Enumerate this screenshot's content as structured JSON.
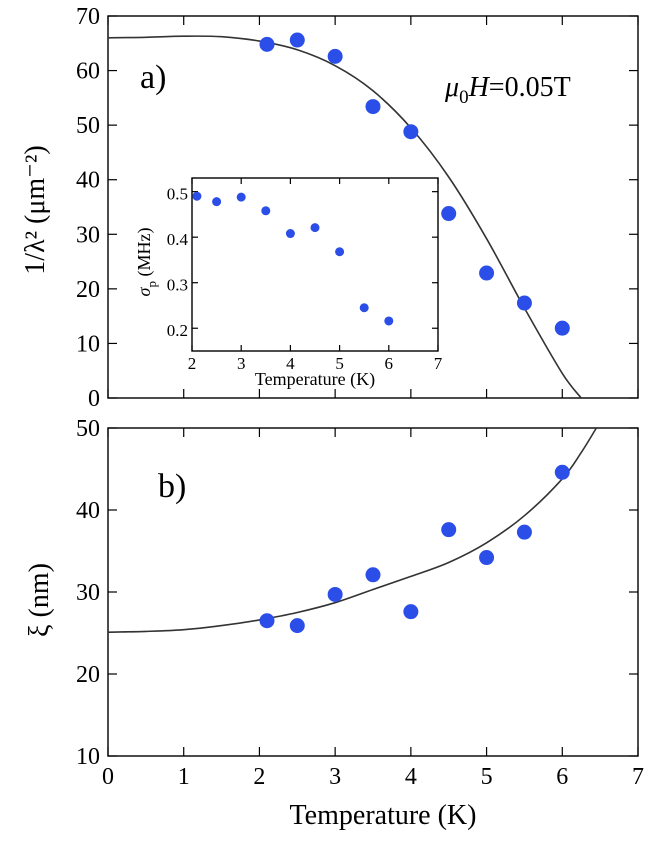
{
  "chart_data": [
    {
      "id": "panel-a",
      "type": "scatter",
      "panel_label": "a)",
      "annotation": {
        "mu": "μ",
        "sub": "0",
        "H": "H",
        "value": "=0.05T"
      },
      "ylabel": "1/λ² (μm⁻²)",
      "xlim": [
        0,
        7
      ],
      "ylim": [
        0,
        70
      ],
      "xticks": [
        0,
        1,
        2,
        3,
        4,
        5,
        6,
        7
      ],
      "yticks": [
        0,
        10,
        20,
        30,
        40,
        50,
        60,
        70
      ],
      "series": [
        {
          "name": "data",
          "x": [
            2.1,
            2.5,
            3.0,
            3.5,
            4.0,
            4.5,
            5.0,
            5.5,
            6.0
          ],
          "y": [
            64.8,
            65.6,
            62.6,
            53.4,
            48.8,
            33.8,
            22.9,
            17.4,
            12.8
          ]
        }
      ],
      "fit": {
        "name": "fit",
        "x": [
          0,
          0.5,
          1.0,
          1.5,
          2.0,
          2.5,
          3.0,
          3.5,
          4.0,
          4.5,
          5.0,
          5.5,
          6.0,
          6.25
        ],
        "y": [
          66.0,
          66.1,
          66.3,
          66.2,
          65.4,
          63.8,
          60.9,
          56.3,
          49.5,
          40.5,
          29.2,
          16.5,
          4.5,
          0
        ]
      }
    },
    {
      "id": "inset",
      "type": "scatter",
      "xlabel": "Temperature (K)",
      "ylabel": "σ_p (MHz)",
      "ylabel_sigma": "σ",
      "ylabel_sub": "p",
      "ylabel_unit": "(MHz)",
      "xlim": [
        2,
        7
      ],
      "ylim": [
        0.15,
        0.53
      ],
      "xticks": [
        2,
        3,
        4,
        5,
        6,
        7
      ],
      "yticks": [
        0.2,
        0.3,
        0.4,
        0.5
      ],
      "ytick_labels": [
        "0.2",
        "0.3",
        "0.4",
        "0.5"
      ],
      "series": [
        {
          "name": "sigma_p",
          "x": [
            2.1,
            2.5,
            3.0,
            3.5,
            4.0,
            4.5,
            5.0,
            5.5,
            6.0
          ],
          "y": [
            0.49,
            0.478,
            0.488,
            0.458,
            0.408,
            0.421,
            0.368,
            0.245,
            0.216
          ]
        }
      ]
    },
    {
      "id": "panel-b",
      "type": "scatter",
      "panel_label": "b)",
      "xlabel": "Temperature (K)",
      "ylabel": "ξ (nm)",
      "xlim": [
        0,
        7
      ],
      "ylim": [
        10,
        50
      ],
      "xticks": [
        0,
        1,
        2,
        3,
        4,
        5,
        6,
        7
      ],
      "yticks": [
        10,
        20,
        30,
        40,
        50
      ],
      "series": [
        {
          "name": "data",
          "x": [
            2.1,
            2.5,
            3.0,
            3.5,
            4.0,
            4.5,
            5.0,
            5.5,
            6.0
          ],
          "y": [
            26.5,
            25.9,
            29.7,
            32.1,
            27.6,
            37.6,
            34.2,
            37.3,
            44.6
          ]
        }
      ],
      "fit": {
        "name": "fit",
        "x": [
          0,
          0.5,
          1.0,
          1.5,
          2.0,
          2.5,
          3.0,
          3.5,
          4.0,
          4.5,
          5.0,
          5.5,
          6.0,
          6.25,
          6.45
        ],
        "y": [
          25.1,
          25.2,
          25.4,
          25.9,
          26.6,
          27.5,
          28.7,
          30.3,
          31.9,
          33.6,
          36.0,
          39.3,
          43.8,
          47.0,
          50.0
        ]
      }
    }
  ]
}
